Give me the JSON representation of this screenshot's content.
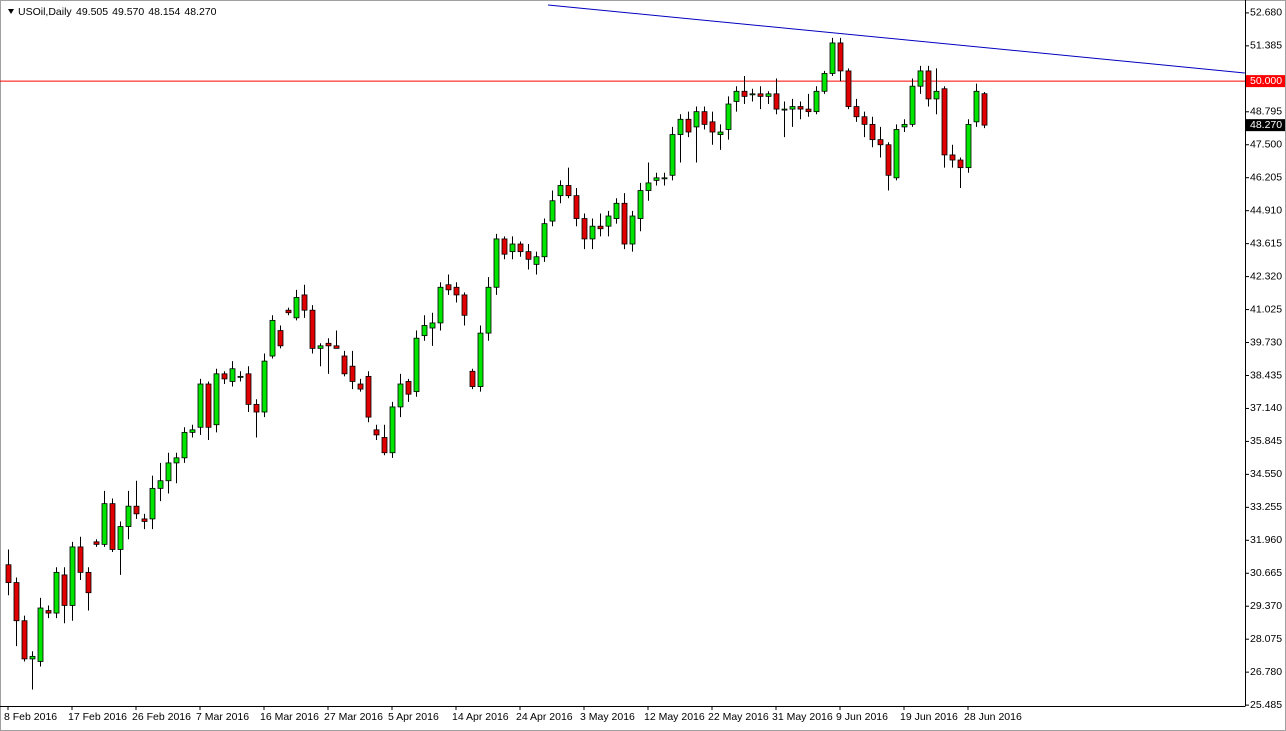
{
  "chart_data": {
    "type": "candlestick",
    "header": {
      "symbol": "USOil,Daily",
      "ohlc": [
        "49.505",
        "49.570",
        "48.154",
        "48.270"
      ]
    },
    "categories": [
      "8 Feb 2016",
      null,
      null,
      null,
      null,
      null,
      null,
      null,
      "17 Feb 2016",
      null,
      null,
      null,
      null,
      null,
      null,
      null,
      "26 Feb 2016",
      null,
      null,
      null,
      null,
      null,
      null,
      null,
      "7 Mar 2016",
      null,
      null,
      null,
      null,
      null,
      null,
      null,
      "16 Mar 2016",
      null,
      null,
      null,
      null,
      null,
      null,
      null,
      "27 Mar 2016",
      null,
      null,
      null,
      null,
      null,
      null,
      null,
      "5 Apr 2016",
      null,
      null,
      null,
      null,
      null,
      null,
      null,
      "14 Apr 2016",
      null,
      null,
      null,
      null,
      null,
      null,
      null,
      "24 Apr 2016",
      null,
      null,
      null,
      null,
      null,
      null,
      null,
      "3 May 2016",
      null,
      null,
      null,
      null,
      null,
      null,
      null,
      "12 May 2016",
      null,
      null,
      null,
      null,
      null,
      null,
      null,
      "22 May 2016",
      null,
      null,
      null,
      null,
      null,
      null,
      null,
      "31 May 2016",
      null,
      null,
      null,
      null,
      null,
      null,
      null,
      "9 Jun 2016",
      null,
      null,
      null,
      null,
      null,
      null,
      null,
      "19 Jun 2016",
      null,
      null,
      null,
      null,
      null,
      null,
      null,
      "28 Jun 2016",
      null,
      null
    ],
    "open": [
      31.0,
      30.3,
      28.8,
      27.3,
      27.2,
      29.2,
      29.1,
      30.6,
      29.4,
      31.7,
      30.7,
      31.9,
      31.8,
      33.4,
      31.6,
      32.5,
      33.3,
      32.8,
      32.8,
      34.0,
      34.3,
      35.0,
      35.2,
      36.2,
      36.4,
      38.1,
      36.5,
      38.5,
      38.2,
      38.4,
      38.5,
      37.3,
      37.0,
      39.2,
      40.2,
      41.0,
      40.7,
      41.6,
      41.0,
      39.5,
      39.7,
      39.6,
      39.2,
      38.8,
      38.1,
      38.4,
      36.3,
      36.0,
      35.4,
      37.2,
      38.2,
      37.8,
      40.0,
      40.3,
      40.5,
      42.0,
      41.9,
      41.6,
      38.6,
      38.0,
      40.1,
      41.9,
      43.8,
      43.3,
      43.6,
      43.3,
      42.8,
      43.1,
      44.5,
      45.5,
      45.9,
      45.5,
      44.6,
      43.8,
      44.3,
      44.3,
      44.6,
      45.2,
      43.6,
      44.6,
      45.7,
      46.1,
      46.2,
      46.3,
      47.9,
      48.5,
      48.2,
      48.8,
      48.4,
      47.9,
      48.1,
      49.2,
      49.6,
      49.5,
      49.5,
      49.4,
      49.5,
      48.9,
      48.9,
      49.0,
      48.9,
      48.8,
      49.6,
      50.3,
      51.5,
      50.4,
      49.0,
      48.6,
      48.3,
      47.7,
      47.5,
      46.2,
      48.2,
      48.3,
      49.8,
      50.4,
      49.3,
      49.7,
      47.1,
      46.9,
      46.6,
      48.4,
      49.505
    ],
    "high": [
      31.6,
      30.5,
      29.0,
      27.6,
      29.7,
      29.4,
      30.9,
      30.9,
      31.9,
      32.1,
      30.9,
      32.0,
      33.9,
      33.6,
      32.7,
      33.9,
      34.3,
      33.0,
      34.5,
      35.0,
      35.4,
      35.4,
      36.4,
      36.5,
      38.3,
      38.2,
      38.7,
      38.6,
      39.0,
      38.6,
      38.8,
      37.5,
      39.3,
      40.8,
      40.4,
      41.1,
      41.8,
      42.0,
      41.2,
      39.7,
      39.9,
      40.2,
      39.4,
      39.4,
      38.3,
      38.6,
      36.5,
      36.5,
      37.4,
      38.5,
      38.3,
      40.2,
      40.8,
      40.9,
      42.1,
      42.4,
      42.1,
      41.7,
      38.7,
      40.4,
      42.3,
      44.0,
      43.9,
      43.9,
      43.7,
      43.6,
      43.3,
      44.6,
      45.7,
      46.1,
      46.6,
      45.8,
      44.8,
      44.6,
      44.8,
      44.9,
      45.4,
      45.6,
      44.9,
      46.0,
      46.8,
      46.4,
      46.4,
      48.2,
      48.7,
      48.8,
      49.0,
      49.0,
      48.8,
      48.3,
      49.4,
      49.8,
      50.2,
      49.7,
      49.8,
      49.6,
      50.1,
      49.2,
      49.3,
      49.2,
      49.5,
      49.8,
      50.4,
      51.7,
      51.7,
      50.5,
      49.3,
      48.8,
      48.6,
      48.2,
      47.6,
      48.3,
      48.5,
      50.1,
      50.6,
      50.6,
      50.5,
      49.8,
      47.5,
      47.0,
      48.5,
      49.9,
      49.57
    ],
    "low": [
      29.8,
      27.8,
      27.2,
      26.1,
      27.0,
      28.9,
      28.9,
      28.7,
      28.8,
      30.4,
      29.2,
      31.7,
      31.7,
      31.5,
      30.6,
      32.0,
      32.8,
      32.4,
      32.4,
      33.5,
      33.8,
      34.2,
      35.0,
      36.0,
      36.1,
      35.9,
      36.2,
      38.1,
      38.0,
      38.2,
      37.0,
      36.0,
      36.8,
      39.1,
      39.5,
      40.8,
      40.6,
      40.7,
      39.3,
      38.8,
      38.5,
      39.5,
      38.4,
      37.9,
      37.8,
      36.6,
      35.9,
      35.3,
      35.2,
      36.8,
      37.4,
      37.6,
      39.8,
      39.6,
      40.2,
      41.6,
      41.3,
      40.4,
      37.9,
      37.8,
      39.8,
      41.6,
      43.0,
      43.0,
      43.1,
      42.6,
      42.4,
      42.9,
      44.3,
      45.2,
      45.4,
      44.3,
      43.4,
      43.4,
      43.9,
      43.9,
      44.4,
      43.4,
      43.3,
      44.1,
      45.3,
      45.9,
      45.9,
      46.1,
      46.8,
      47.8,
      46.8,
      48.1,
      47.5,
      47.3,
      47.7,
      48.8,
      49.1,
      49.2,
      48.9,
      49.1,
      48.7,
      47.8,
      48.2,
      48.5,
      48.6,
      48.7,
      49.5,
      50.2,
      50.0,
      48.9,
      48.4,
      47.8,
      47.4,
      47.0,
      45.7,
      46.1,
      48.0,
      48.2,
      49.5,
      49.0,
      48.7,
      46.6,
      46.6,
      45.8,
      46.4,
      48.2,
      48.154
    ],
    "close": [
      30.3,
      28.8,
      27.3,
      27.4,
      29.3,
      29.1,
      30.7,
      29.4,
      31.7,
      30.7,
      29.9,
      31.8,
      33.4,
      31.6,
      32.5,
      33.3,
      33.0,
      32.7,
      34.0,
      34.3,
      35.0,
      35.2,
      36.2,
      36.3,
      38.1,
      36.4,
      38.5,
      38.3,
      38.7,
      38.4,
      37.3,
      37.0,
      39.0,
      40.6,
      39.6,
      40.9,
      41.5,
      41.0,
      39.5,
      39.6,
      39.6,
      39.5,
      38.5,
      38.2,
      37.9,
      36.8,
      36.1,
      35.4,
      37.2,
      38.1,
      37.7,
      39.9,
      40.4,
      40.5,
      41.9,
      41.8,
      41.6,
      40.8,
      38.0,
      40.1,
      41.9,
      43.8,
      43.2,
      43.6,
      43.3,
      43.0,
      43.1,
      44.4,
      45.3,
      45.9,
      45.5,
      44.6,
      43.8,
      44.3,
      44.2,
      44.7,
      45.2,
      43.6,
      44.7,
      45.7,
      46.0,
      46.2,
      46.2,
      47.9,
      48.5,
      48.0,
      48.8,
      48.3,
      48.0,
      48.0,
      49.1,
      49.6,
      49.4,
      49.5,
      49.4,
      49.5,
      48.9,
      48.9,
      49.0,
      48.9,
      48.8,
      49.6,
      50.3,
      51.5,
      50.4,
      49.0,
      48.6,
      48.3,
      47.7,
      47.5,
      46.3,
      48.1,
      48.3,
      49.8,
      50.4,
      49.3,
      49.6,
      47.1,
      46.9,
      46.6,
      48.3,
      49.6,
      48.27
    ],
    "up_color": "#00e600",
    "down_color": "#e00000",
    "wick_color": "#000000",
    "ylim": [
      25.45,
      52.99
    ],
    "yticks": [
      {
        "value": 52.68,
        "label": "52.680"
      },
      {
        "value": 51.385,
        "label": "51.385"
      },
      {
        "value": 48.795,
        "label": "48.795"
      },
      {
        "value": 47.5,
        "label": "47.500"
      },
      {
        "value": 46.205,
        "label": "46.205"
      },
      {
        "value": 44.91,
        "label": "44.910"
      },
      {
        "value": 43.615,
        "label": "43.615"
      },
      {
        "value": 42.32,
        "label": "42.320"
      },
      {
        "value": 41.025,
        "label": "41.025"
      },
      {
        "value": 39.73,
        "label": "39.730"
      },
      {
        "value": 38.435,
        "label": "38.435"
      },
      {
        "value": 37.14,
        "label": "37.140"
      },
      {
        "value": 35.845,
        "label": "35.845"
      },
      {
        "value": 34.55,
        "label": "34.550"
      },
      {
        "value": 33.255,
        "label": "33.255"
      },
      {
        "value": 31.96,
        "label": "31.960"
      },
      {
        "value": 30.665,
        "label": "30.665"
      },
      {
        "value": 29.37,
        "label": "29.370"
      },
      {
        "value": 28.075,
        "label": "28.075"
      },
      {
        "value": 26.78,
        "label": "26.780"
      },
      {
        "value": 25.485,
        "label": "25.485"
      }
    ],
    "hline": {
      "value": 50,
      "label": "50.000",
      "color": "#ff0000"
    },
    "price_line": {
      "value": 48.27,
      "label": "48.270"
    },
    "trendline": {
      "x": [
        67.5,
        154.6
      ],
      "y": [
        52.99,
        50.32
      ],
      "color": "#0000c0"
    }
  }
}
